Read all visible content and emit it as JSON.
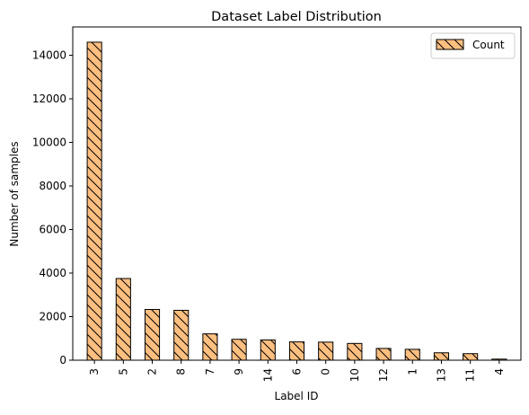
{
  "chart_data": {
    "type": "bar",
    "title": "Dataset Label Distribution",
    "xlabel": "Label ID",
    "ylabel": "Number of samples",
    "categories": [
      "3",
      "5",
      "2",
      "8",
      "7",
      "9",
      "14",
      "6",
      "0",
      "10",
      "12",
      "1",
      "13",
      "11",
      "4"
    ],
    "series": [
      {
        "name": "Count",
        "values": [
          14600,
          3750,
          2330,
          2290,
          1210,
          960,
          930,
          840,
          830,
          770,
          540,
          500,
          340,
          300,
          50
        ]
      }
    ],
    "ylim": [
      0,
      15300
    ],
    "yticks": [
      0,
      2000,
      4000,
      6000,
      8000,
      10000,
      12000,
      14000
    ],
    "grid": false,
    "legend_position": "top-right",
    "bar_color": "#fdbf80",
    "edge_color": "#000000",
    "hatch": "backslash"
  }
}
